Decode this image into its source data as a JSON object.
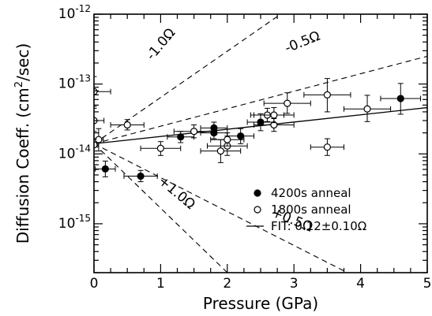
{
  "chart_data": {
    "type": "scatter",
    "title": "",
    "xlabel": "Pressure (GPa)",
    "ylabel_parts": [
      "Diffusion Coeff. (cm",
      "2",
      "/sec)"
    ],
    "xlim": [
      0,
      5
    ],
    "ylim_log10": [
      -15.7,
      -12
    ],
    "y_scale": "log",
    "grid": false,
    "x_ticks": [
      0,
      1,
      2,
      3,
      4,
      5
    ],
    "x_tick_labels": [
      "0",
      "1",
      "2",
      "3",
      "4",
      "5"
    ],
    "y_major_ticks_log10": [
      -15,
      -14,
      -13,
      -12
    ],
    "y_tick_labels": [
      {
        "base": "10",
        "exp": "-15"
      },
      {
        "base": "10",
        "exp": "-14"
      },
      {
        "base": "10",
        "exp": "-13"
      },
      {
        "base": "10",
        "exp": "-12"
      }
    ],
    "legend_position": "lower-right",
    "legend": [
      {
        "marker": "filled-circle",
        "label": "4200s anneal"
      },
      {
        "marker": "open-circle",
        "label": "1800s anneal"
      },
      {
        "marker": "solid-line",
        "label": "FIT: 0.12±0.10Ω"
      }
    ],
    "series": [
      {
        "name": "4200s anneal",
        "marker": "filled",
        "points": [
          {
            "x": 0.17,
            "y": 6.1e-15,
            "xerr": 0.15,
            "yerr_up": 1.8e-15,
            "yerr_down": 1.4e-15
          },
          {
            "x": 0.7,
            "y": 4.8e-15,
            "xerr": 0.25,
            "yerr_up": 1e-15,
            "yerr_down": 8e-16
          },
          {
            "x": 1.3,
            "y": 1.75e-14,
            "xerr": 0.2,
            "yerr_up": 3.5e-15,
            "yerr_down": 3e-15
          },
          {
            "x": 1.8,
            "y": 2e-14,
            "xerr": 0.2,
            "yerr_up": 4e-15,
            "yerr_down": 3.5e-15
          },
          {
            "x": 1.8,
            "y": 2.35e-14,
            "xerr": 0.2,
            "yerr_up": 5e-15,
            "yerr_down": 4e-15
          },
          {
            "x": 2.2,
            "y": 1.8e-14,
            "xerr": 0.2,
            "yerr_up": 5e-15,
            "yerr_down": 4e-15
          },
          {
            "x": 2.5,
            "y": 2.85e-14,
            "xerr": 0.2,
            "yerr_up": 9e-15,
            "yerr_down": 7e-15
          },
          {
            "x": 4.6,
            "y": 6.2e-14,
            "xerr": 0.3,
            "yerr_up": 4e-14,
            "yerr_down": 2.5e-14
          }
        ]
      },
      {
        "name": "1800s anneal",
        "marker": "open",
        "points": [
          {
            "x": 0.0,
            "y": 7.8e-14,
            "xerr": 0.25,
            "yerr_up": 5e-14,
            "yerr_down": 3e-14
          },
          {
            "x": 0.0,
            "y": 3e-14,
            "xerr": 0.15,
            "yerr_up": 1.5e-14,
            "yerr_down": 9e-15
          },
          {
            "x": 0.07,
            "y": 1.6e-14,
            "xerr": 0.07,
            "yerr_up": 7e-15,
            "yerr_down": 5e-15
          },
          {
            "x": 0.0,
            "y": 1.35e-14,
            "xerr": 0.07,
            "yerr_up": 3e-15,
            "yerr_down": 2.5e-15
          },
          {
            "x": 0.5,
            "y": 2.6e-14,
            "xerr": 0.25,
            "yerr_up": 5e-15,
            "yerr_down": 4e-15
          },
          {
            "x": 1.0,
            "y": 1.2e-14,
            "xerr": 0.3,
            "yerr_up": 3e-15,
            "yerr_down": 2.5e-15
          },
          {
            "x": 1.5,
            "y": 2.1e-14,
            "xerr": 0.3,
            "yerr_up": 5e-15,
            "yerr_down": 4e-15
          },
          {
            "x": 1.9,
            "y": 1.1e-14,
            "xerr": 0.3,
            "yerr_up": 5e-15,
            "yerr_down": 3.5e-15
          },
          {
            "x": 2.0,
            "y": 1.3e-14,
            "xerr": 0.3,
            "yerr_up": 5e-15,
            "yerr_down": 3.5e-15
          },
          {
            "x": 2.0,
            "y": 1.6e-14,
            "xerr": 0.25,
            "yerr_up": 4e-15,
            "yerr_down": 3e-15
          },
          {
            "x": 2.6,
            "y": 3.6e-14,
            "xerr": 0.25,
            "yerr_up": 9e-15,
            "yerr_down": 7e-15
          },
          {
            "x": 2.7,
            "y": 2.6e-14,
            "xerr": 0.3,
            "yerr_up": 6e-15,
            "yerr_down": 5e-15
          },
          {
            "x": 2.7,
            "y": 3.6e-14,
            "xerr": 0.3,
            "yerr_up": 1e-14,
            "yerr_down": 8e-15
          },
          {
            "x": 2.9,
            "y": 5.3e-14,
            "xerr": 0.35,
            "yerr_up": 2.2e-14,
            "yerr_down": 1.5e-14
          },
          {
            "x": 3.5,
            "y": 7e-14,
            "xerr": 0.35,
            "yerr_up": 5e-14,
            "yerr_down": 3e-14
          },
          {
            "x": 3.5,
            "y": 1.25e-14,
            "xerr": 0.25,
            "yerr_up": 4e-15,
            "yerr_down": 3e-15
          },
          {
            "x": 4.1,
            "y": 4.4e-14,
            "xerr": 0.35,
            "yerr_up": 2.5e-14,
            "yerr_down": 1.5e-14
          }
        ]
      }
    ],
    "fit_line": {
      "label": "FIT: 0.12±0.10Ω",
      "points": [
        {
          "x": 0,
          "y": 1.4e-14
        },
        {
          "x": 5,
          "y": 4.6e-14
        }
      ]
    },
    "reference_lines": [
      {
        "label": "-1.0Ω",
        "points": [
          {
            "x": 0,
            "y": 1.4e-14
          },
          {
            "x": 2.8,
            "y": 1e-12
          }
        ]
      },
      {
        "label": "-0.5Ω",
        "points": [
          {
            "x": 0,
            "y": 1.4e-14
          },
          {
            "x": 5,
            "y": 2.5e-13
          }
        ]
      },
      {
        "label": "+1.0Ω",
        "points": [
          {
            "x": 0,
            "y": 1.4e-14
          },
          {
            "x": 2.0,
            "y": 2e-16
          }
        ]
      },
      {
        "label": "+0.5Ω",
        "points": [
          {
            "x": 0,
            "y": 1.4e-14
          },
          {
            "x": 3.8,
            "y": 2e-16
          }
        ]
      }
    ],
    "annotations": [
      {
        "text": "-1.0Ω",
        "x": 1.05,
        "y": 3.4e-13,
        "rotate": -50
      },
      {
        "text": "-0.5Ω",
        "x": 3.15,
        "y": 3.5e-13,
        "rotate": -22
      },
      {
        "text": "+1.0Ω",
        "x": 1.2,
        "y": 2.5e-15,
        "rotate": 40
      },
      {
        "text": "+0.5Ω",
        "x": 2.95,
        "y": 1e-15,
        "rotate": 22
      }
    ]
  }
}
